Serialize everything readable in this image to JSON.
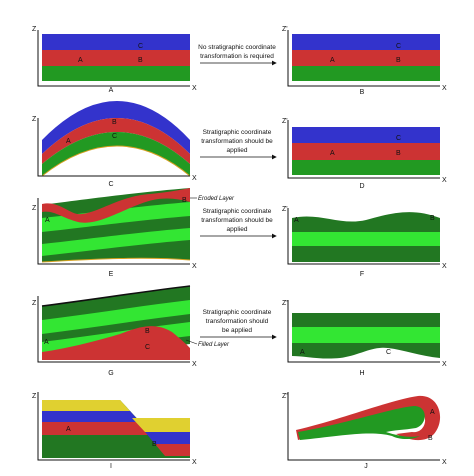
{
  "axes": {
    "z": "Z",
    "z_prime": "Z'",
    "x": "X"
  },
  "colors": {
    "blue": "#3333cc",
    "red": "#cc3333",
    "green": "#229922",
    "light_green": "#33e633",
    "dark_green": "#227722",
    "yellow": "#e0d030",
    "orange": "#d4a020"
  },
  "panels": {
    "A": {
      "caption": "A",
      "points": [
        "C",
        "A",
        "B"
      ]
    },
    "B": {
      "caption": "B",
      "points": [
        "C",
        "A",
        "B"
      ]
    },
    "C": {
      "caption": "C",
      "points": [
        "B",
        "A",
        "C"
      ]
    },
    "D": {
      "caption": "D",
      "points": [
        "C",
        "A",
        "B"
      ]
    },
    "E": {
      "caption": "E",
      "points": [
        "A",
        "B"
      ],
      "note": "Eroded Layer"
    },
    "F": {
      "caption": "F",
      "points": [
        "A",
        "B"
      ]
    },
    "G": {
      "caption": "G",
      "points": [
        "A",
        "B",
        "C"
      ],
      "note": "Filled Layer"
    },
    "H": {
      "caption": "H",
      "points": [
        "A",
        "C"
      ]
    },
    "I": {
      "caption": "I",
      "points": [
        "A",
        "B"
      ]
    },
    "J": {
      "caption": "J",
      "points": [
        "A",
        "B"
      ]
    }
  },
  "transitions": {
    "row1": [
      "No stratigraphic coordinate",
      "transformation is required"
    ],
    "row2": [
      "Stratigraphic coordinate",
      "transformation should be",
      "applied"
    ],
    "row3": [
      "Stratigraphic coordinate",
      "transformation should be",
      "applied"
    ],
    "row4": [
      "Stratigraphic coordinate",
      "transformation should",
      "be applied"
    ]
  }
}
